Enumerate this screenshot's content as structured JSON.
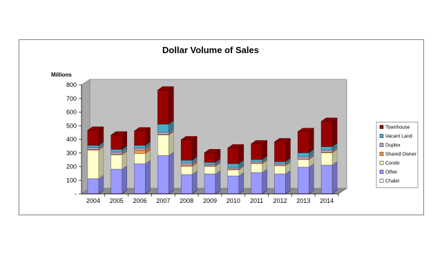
{
  "chart_data": {
    "type": "bar",
    "stacked": true,
    "title": "Dollar Volume of Sales",
    "unit_label": "Millions",
    "xlabel": "",
    "ylabel": "",
    "categories": [
      "2004",
      "2005",
      "2006",
      "2007",
      "2008",
      "2009",
      "2010",
      "2011",
      "2012",
      "2013",
      "2014"
    ],
    "y_ticks": [
      "-",
      "100",
      "200",
      "300",
      "400",
      "500",
      "600",
      "700",
      "800"
    ],
    "ylim": [
      0,
      800
    ],
    "grid": false,
    "legend_position": "right",
    "series": [
      {
        "name": "Chalet",
        "color": "#cccccc",
        "values": [
          0,
          0,
          0,
          0,
          0,
          0,
          0,
          0,
          0,
          0,
          0
        ]
      },
      {
        "name": "Other",
        "color": "#993366",
        "values": [
          2,
          2,
          2,
          2,
          2,
          2,
          2,
          2,
          2,
          2,
          2
        ]
      },
      {
        "name": "Condo",
        "color": "#9999ff",
        "values": [
          110,
          180,
          220,
          280,
          140,
          145,
          130,
          155,
          145,
          195,
          210
        ]
      },
      {
        "name": "Shared Owner",
        "color": "#ffffcc",
        "values": [
          210,
          105,
          75,
          150,
          60,
          55,
          45,
          65,
          60,
          55,
          90
        ]
      },
      {
        "name": "Duplex",
        "color": "#f79646",
        "values": [
          5,
          5,
          25,
          5,
          10,
          5,
          5,
          5,
          5,
          5,
          5
        ]
      },
      {
        "name": "Vacant Land",
        "color": "#b7a6c9",
        "values": [
          15,
          15,
          15,
          15,
          15,
          10,
          10,
          10,
          10,
          15,
          15
        ]
      },
      {
        "name": "Townhouse",
        "color": "#4bacc6",
        "values": [
          15,
          20,
          20,
          60,
          20,
          15,
          30,
          15,
          15,
          30,
          25
        ]
      },
      {
        "name": "",
        "color": "#990000",
        "values": [
          110,
          105,
          105,
          250,
          150,
          70,
          115,
          115,
          145,
          155,
          185
        ]
      }
    ],
    "legend": [
      {
        "label": "Townhouse",
        "color": "#990000"
      },
      {
        "label": "Vacant Land",
        "color": "#4bacc6"
      },
      {
        "label": "Duplex",
        "color": "#b7a6c9"
      },
      {
        "label": "Shared Owner",
        "color": "#f79646"
      },
      {
        "label": "Condo",
        "color": "#ffffcc"
      },
      {
        "label": "Other",
        "color": "#9999ff"
      },
      {
        "label": "Chalet",
        "color": "#ffffff"
      }
    ]
  }
}
